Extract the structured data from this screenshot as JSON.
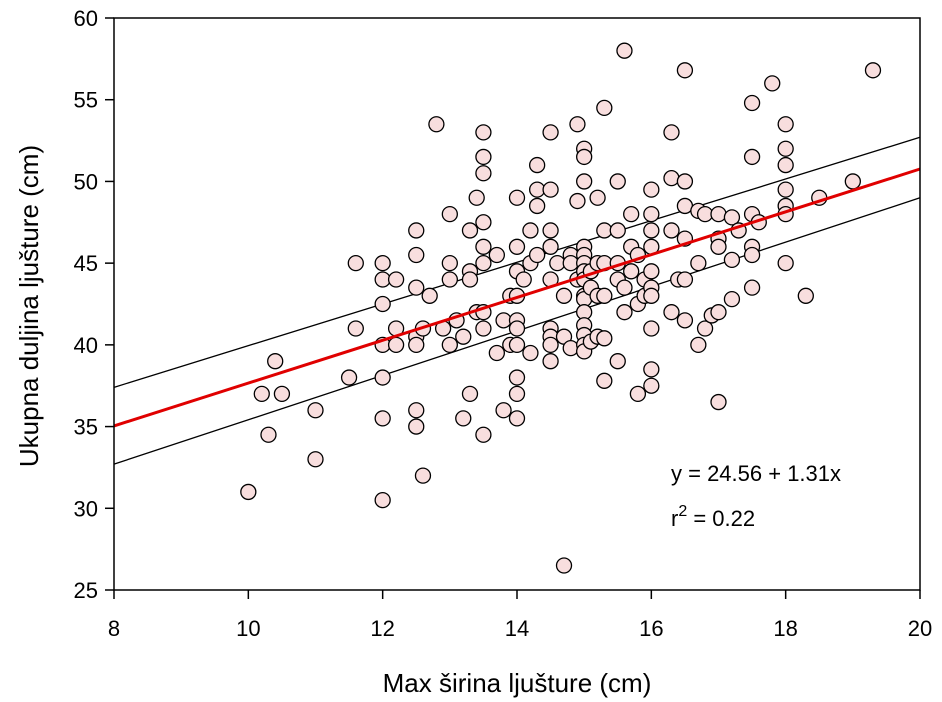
{
  "chart_data": {
    "type": "scatter",
    "title": "",
    "xlabel": "Max širina ljušture (cm)",
    "ylabel": "Ukupna duljina ljušture (cm)",
    "xlim": [
      8,
      20
    ],
    "ylim": [
      25,
      60
    ],
    "xticks": [
      8,
      10,
      12,
      14,
      16,
      18,
      20
    ],
    "yticks": [
      25,
      30,
      35,
      40,
      45,
      50,
      55,
      60
    ],
    "grid": false,
    "colors": {
      "marker_fill": "#f8dede",
      "marker_stroke": "#000000",
      "regression_line": "#e00000",
      "confidence_band": "#000000"
    },
    "regression": {
      "intercept": 24.56,
      "slope": 1.31
    },
    "confidence_band": {
      "lower": [
        [
          8,
          32.7
        ],
        [
          20,
          49.0
        ]
      ],
      "upper": [
        [
          8,
          37.4
        ],
        [
          20,
          52.7
        ]
      ]
    },
    "annotation": {
      "equation_line": "y = 24.56 + 1.31x",
      "r_symbol": "r",
      "r_exponent": "2",
      "r_value": " = 0.22"
    },
    "points": [
      [
        10,
        31
      ],
      [
        10.2,
        37
      ],
      [
        10.3,
        34.5
      ],
      [
        10.4,
        39
      ],
      [
        10.5,
        37
      ],
      [
        11,
        36
      ],
      [
        11,
        33
      ],
      [
        11.5,
        38
      ],
      [
        11.6,
        45
      ],
      [
        11.6,
        41
      ],
      [
        12,
        45
      ],
      [
        12,
        44
      ],
      [
        12,
        42.5
      ],
      [
        12,
        40
      ],
      [
        12,
        38
      ],
      [
        12,
        35.5
      ],
      [
        12,
        30.5
      ],
      [
        12.2,
        44
      ],
      [
        12.2,
        41
      ],
      [
        12.2,
        40
      ],
      [
        12.5,
        47
      ],
      [
        12.5,
        45.5
      ],
      [
        12.5,
        43.5
      ],
      [
        12.5,
        40.5
      ],
      [
        12.5,
        40
      ],
      [
        12.5,
        36
      ],
      [
        12.5,
        35
      ],
      [
        12.6,
        41
      ],
      [
        12.6,
        32
      ],
      [
        12.7,
        43
      ],
      [
        12.8,
        53.5
      ],
      [
        12.9,
        41
      ],
      [
        13,
        48
      ],
      [
        13,
        45
      ],
      [
        13,
        44
      ],
      [
        13,
        40
      ],
      [
        13.1,
        41.5
      ],
      [
        13.2,
        40.5
      ],
      [
        13.2,
        35.5
      ],
      [
        13.3,
        47
      ],
      [
        13.3,
        44.5
      ],
      [
        13.3,
        44
      ],
      [
        13.3,
        37
      ],
      [
        13.4,
        49
      ],
      [
        13.4,
        42
      ],
      [
        13.5,
        53
      ],
      [
        13.5,
        51.5
      ],
      [
        13.5,
        50.5
      ],
      [
        13.5,
        47.5
      ],
      [
        13.5,
        46
      ],
      [
        13.5,
        45
      ],
      [
        13.5,
        42
      ],
      [
        13.5,
        41
      ],
      [
        13.5,
        34.5
      ],
      [
        13.7,
        45.5
      ],
      [
        13.7,
        39.5
      ],
      [
        13.8,
        41.5
      ],
      [
        13.8,
        36
      ],
      [
        13.9,
        43
      ],
      [
        13.9,
        40
      ],
      [
        14,
        49
      ],
      [
        14,
        46
      ],
      [
        14,
        44.5
      ],
      [
        14,
        43
      ],
      [
        14,
        41.5
      ],
      [
        14,
        41
      ],
      [
        14,
        40
      ],
      [
        14,
        38
      ],
      [
        14,
        37
      ],
      [
        14,
        35.5
      ],
      [
        14.1,
        44
      ],
      [
        14.2,
        47
      ],
      [
        14.2,
        45
      ],
      [
        14.2,
        39.5
      ],
      [
        14.3,
        51
      ],
      [
        14.3,
        49.5
      ],
      [
        14.3,
        48.5
      ],
      [
        14.3,
        45.5
      ],
      [
        14.5,
        53
      ],
      [
        14.5,
        49.5
      ],
      [
        14.5,
        47
      ],
      [
        14.5,
        46
      ],
      [
        14.5,
        44
      ],
      [
        14.5,
        41
      ],
      [
        14.5,
        40.5
      ],
      [
        14.5,
        40
      ],
      [
        14.5,
        39
      ],
      [
        14.6,
        45
      ],
      [
        14.7,
        43
      ],
      [
        14.7,
        40.5
      ],
      [
        14.7,
        26.5
      ],
      [
        14.8,
        45.5
      ],
      [
        14.8,
        45
      ],
      [
        14.8,
        39.8
      ],
      [
        14.9,
        53.5
      ],
      [
        14.9,
        48.8
      ],
      [
        14.9,
        44
      ],
      [
        15,
        52
      ],
      [
        15,
        51.5
      ],
      [
        15,
        50
      ],
      [
        15,
        46
      ],
      [
        15,
        45.5
      ],
      [
        15,
        45
      ],
      [
        15,
        44.5
      ],
      [
        15,
        44
      ],
      [
        15,
        43
      ],
      [
        15,
        42.8
      ],
      [
        15,
        42
      ],
      [
        15,
        41.2
      ],
      [
        15,
        40.6
      ],
      [
        15,
        40
      ],
      [
        15,
        39.6
      ],
      [
        15.1,
        44.5
      ],
      [
        15.1,
        43.5
      ],
      [
        15.1,
        40.2
      ],
      [
        15.2,
        49
      ],
      [
        15.2,
        45
      ],
      [
        15.2,
        43
      ],
      [
        15.2,
        40.5
      ],
      [
        15.3,
        54.5
      ],
      [
        15.3,
        47
      ],
      [
        15.3,
        45
      ],
      [
        15.3,
        43
      ],
      [
        15.3,
        40.4
      ],
      [
        15.3,
        37.8
      ],
      [
        15.5,
        50
      ],
      [
        15.5,
        47
      ],
      [
        15.5,
        45
      ],
      [
        15.5,
        44
      ],
      [
        15.5,
        39
      ],
      [
        15.6,
        58
      ],
      [
        15.6,
        43.5
      ],
      [
        15.6,
        42
      ],
      [
        15.7,
        48
      ],
      [
        15.7,
        46
      ],
      [
        15.7,
        44.5
      ],
      [
        15.8,
        45.5
      ],
      [
        15.8,
        42.5
      ],
      [
        15.8,
        37
      ],
      [
        15.9,
        44
      ],
      [
        15.9,
        43
      ],
      [
        16,
        49.5
      ],
      [
        16,
        48
      ],
      [
        16,
        47
      ],
      [
        16,
        46
      ],
      [
        16,
        44.5
      ],
      [
        16,
        43.5
      ],
      [
        16,
        43
      ],
      [
        16,
        41
      ],
      [
        16,
        38.5
      ],
      [
        16,
        37.5
      ],
      [
        16.3,
        53
      ],
      [
        16.3,
        50.2
      ],
      [
        16.3,
        47
      ],
      [
        16.3,
        42
      ],
      [
        16.4,
        44
      ],
      [
        16.5,
        56.8
      ],
      [
        16.5,
        50
      ],
      [
        16.5,
        48.5
      ],
      [
        16.5,
        46.5
      ],
      [
        16.5,
        44
      ],
      [
        16.5,
        41.5
      ],
      [
        16.7,
        48.2
      ],
      [
        16.7,
        45
      ],
      [
        16.7,
        40
      ],
      [
        16.8,
        48
      ],
      [
        16.8,
        41
      ],
      [
        16.9,
        41.8
      ],
      [
        17,
        48
      ],
      [
        17,
        46.5
      ],
      [
        17,
        46
      ],
      [
        17,
        42
      ],
      [
        17,
        36.5
      ],
      [
        17.2,
        47.8
      ],
      [
        17.2,
        45.2
      ],
      [
        17.2,
        42.8
      ],
      [
        17.3,
        47
      ],
      [
        17.5,
        54.8
      ],
      [
        17.5,
        51.5
      ],
      [
        17.5,
        48
      ],
      [
        17.5,
        46
      ],
      [
        17.5,
        45.5
      ],
      [
        17.5,
        43.5
      ],
      [
        17.6,
        47.5
      ],
      [
        17.8,
        56
      ],
      [
        18,
        53.5
      ],
      [
        18,
        52
      ],
      [
        18,
        51
      ],
      [
        18,
        49.5
      ],
      [
        18,
        48.5
      ],
      [
        18,
        48
      ],
      [
        18,
        45
      ],
      [
        18.3,
        43
      ],
      [
        18.5,
        49
      ],
      [
        19,
        50
      ],
      [
        19.3,
        56.8
      ]
    ]
  }
}
